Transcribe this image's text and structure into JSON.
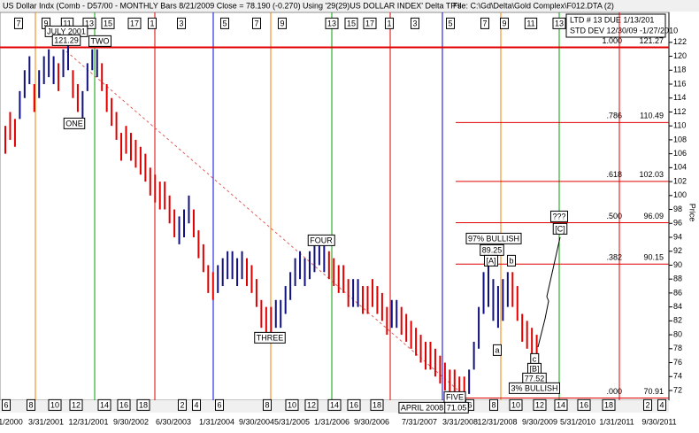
{
  "header": {
    "title": "US Dollar Indx (Comb - D57/00 - MONTHLY Bars  8/21/2009 Close = 78.190 (-0.270)",
    "using": "Using '29(29)US DOLLAR INDEX' Delta TP's",
    "file": "File: C:\\Gd\\Delta\\Gold Complex\\F012.DTA (2)"
  },
  "info_box": [
    "LTD # 13 DUE 1/13/201",
    "STD DEV 12/30/09 -1/27/2010"
  ],
  "chart_data": {
    "type": "ohlc",
    "y_label": "Price",
    "ylim": [
      70.6,
      126.3
    ],
    "yticks": [
      72,
      74,
      76,
      78,
      80,
      82,
      84,
      86,
      88,
      90,
      92,
      94,
      96,
      98,
      100,
      102,
      104,
      106,
      108,
      110,
      112,
      114,
      116,
      118,
      120,
      122
    ],
    "categories": [
      "1/2000",
      "3/31/2001",
      "12/31/2001",
      "9/30/2002",
      "6/30/2003",
      "1/31/2004",
      "9/30/2004",
      "5/31/2005",
      "1/31/2006",
      "9/30/2006",
      "7/31/2007",
      "3/31/2008",
      "12/31/2008",
      "9/30/2009",
      "5/31/2010",
      "1/31/2011",
      "9/30/2011"
    ],
    "runs": [
      {
        "color": "#e00000",
        "high": [
          110,
          112,
          111
        ],
        "low": [
          106,
          108,
          107
        ]
      },
      {
        "color": "#101080",
        "high": [
          115,
          118,
          120
        ],
        "low": [
          111,
          114,
          116
        ]
      },
      {
        "color": "#e00000",
        "high": [
          116
        ],
        "low": [
          112
        ]
      },
      {
        "color": "#101080",
        "high": [
          118,
          120,
          121,
          120
        ],
        "low": [
          114,
          116,
          117,
          116
        ]
      },
      {
        "color": "#e00000",
        "high": [
          119
        ],
        "low": [
          115
        ]
      },
      {
        "color": "#101080",
        "high": [
          121,
          122
        ],
        "low": [
          117,
          118
        ]
      },
      {
        "color": "#e00000",
        "high": [
          118,
          116
        ],
        "low": [
          114,
          112
        ]
      },
      {
        "color": "#101080",
        "high": [
          115,
          119,
          121,
          121
        ],
        "low": [
          111,
          115,
          118,
          117
        ]
      },
      {
        "color": "#e00000",
        "high": [
          119,
          116,
          114,
          112,
          109,
          110,
          109,
          108,
          107,
          106,
          104,
          103,
          102,
          102,
          100,
          98
        ],
        "low": [
          115,
          112,
          110,
          108,
          105,
          106,
          105,
          104,
          103,
          102,
          100,
          99,
          98,
          98,
          96,
          94
        ]
      },
      {
        "color": "#101080",
        "high": [
          97,
          98,
          100
        ],
        "low": [
          93,
          94,
          96
        ]
      },
      {
        "color": "#e00000",
        "high": [
          98,
          95,
          93,
          90,
          89
        ],
        "low": [
          94,
          91,
          89,
          86,
          85
        ]
      },
      {
        "color": "#101080",
        "high": [
          90,
          91,
          92,
          92,
          91,
          92
        ],
        "low": [
          86,
          87,
          88,
          88,
          87,
          88
        ]
      },
      {
        "color": "#e00000",
        "high": [
          91,
          90,
          88,
          85,
          84,
          84
        ],
        "low": [
          87,
          86,
          84,
          81,
          80,
          80
        ]
      },
      {
        "color": "#101080",
        "high": [
          85,
          85,
          87,
          89,
          91,
          92,
          91,
          92,
          93,
          94,
          93
        ],
        "low": [
          81,
          81,
          83,
          85,
          87,
          88,
          87,
          88,
          89,
          90,
          89
        ]
      },
      {
        "color": "#e00000",
        "high": [
          92,
          91,
          90,
          90,
          88
        ],
        "low": [
          88,
          87,
          86,
          86,
          84
        ]
      },
      {
        "color": "#101080",
        "high": [
          88,
          88
        ],
        "low": [
          84,
          84
        ]
      },
      {
        "color": "#e00000",
        "high": [
          87,
          87,
          88,
          87,
          86,
          84
        ],
        "low": [
          83,
          83,
          84,
          83,
          82,
          80
        ]
      },
      {
        "color": "#101080",
        "high": [
          85,
          85
        ],
        "low": [
          81,
          81
        ]
      },
      {
        "color": "#e00000",
        "high": [
          84,
          83,
          82,
          81,
          80,
          79,
          79,
          78,
          77,
          76,
          75,
          75,
          74,
          74
        ],
        "low": [
          80,
          79,
          78,
          77,
          76,
          75,
          75,
          74,
          73,
          72,
          71.5,
          71.5,
          71.5,
          71.5
        ]
      },
      {
        "color": "#101080",
        "high": [
          75,
          79,
          84,
          89,
          90,
          88,
          87,
          88,
          89
        ],
        "low": [
          71.5,
          75,
          78,
          83,
          84,
          82,
          81,
          82,
          84
        ]
      },
      {
        "color": "#e00000",
        "high": [
          89,
          87,
          83,
          82,
          81,
          80
        ],
        "low": [
          84,
          82,
          79,
          78,
          77,
          77
        ]
      }
    ],
    "fib_levels": [
      {
        "ratio": "1.000",
        "price": 121.27
      },
      {
        "ratio": ".786",
        "price": 110.49
      },
      {
        "ratio": ".618",
        "price": 102.03
      },
      {
        "ratio": ".500",
        "price": 96.09
      },
      {
        "ratio": ".382",
        "price": 90.15
      },
      {
        "ratio": ".000",
        "price": 70.91
      }
    ],
    "annotations": [
      "JULY 2001",
      "121.29",
      "TWO",
      "ONE",
      "THREE",
      "FOUR",
      "APRIL 2008",
      "FIVE",
      "71.05",
      "97% BULLISH",
      "89.25",
      "[A]",
      "b",
      "a",
      "c",
      "[B]",
      "77.52",
      "3% BULLISH",
      "???",
      "[C]"
    ],
    "top_cycles": [
      7,
      9,
      11,
      13,
      15,
      17,
      1,
      3,
      5,
      7,
      9,
      13,
      15,
      17,
      1,
      3,
      5,
      7,
      9,
      11,
      13
    ],
    "bottom_cycles": [
      6,
      8,
      10,
      12,
      14,
      16,
      18,
      2,
      4,
      6,
      8,
      10,
      12,
      14,
      16,
      18,
      6,
      8,
      10,
      12,
      14,
      16,
      18,
      2,
      4
    ]
  }
}
